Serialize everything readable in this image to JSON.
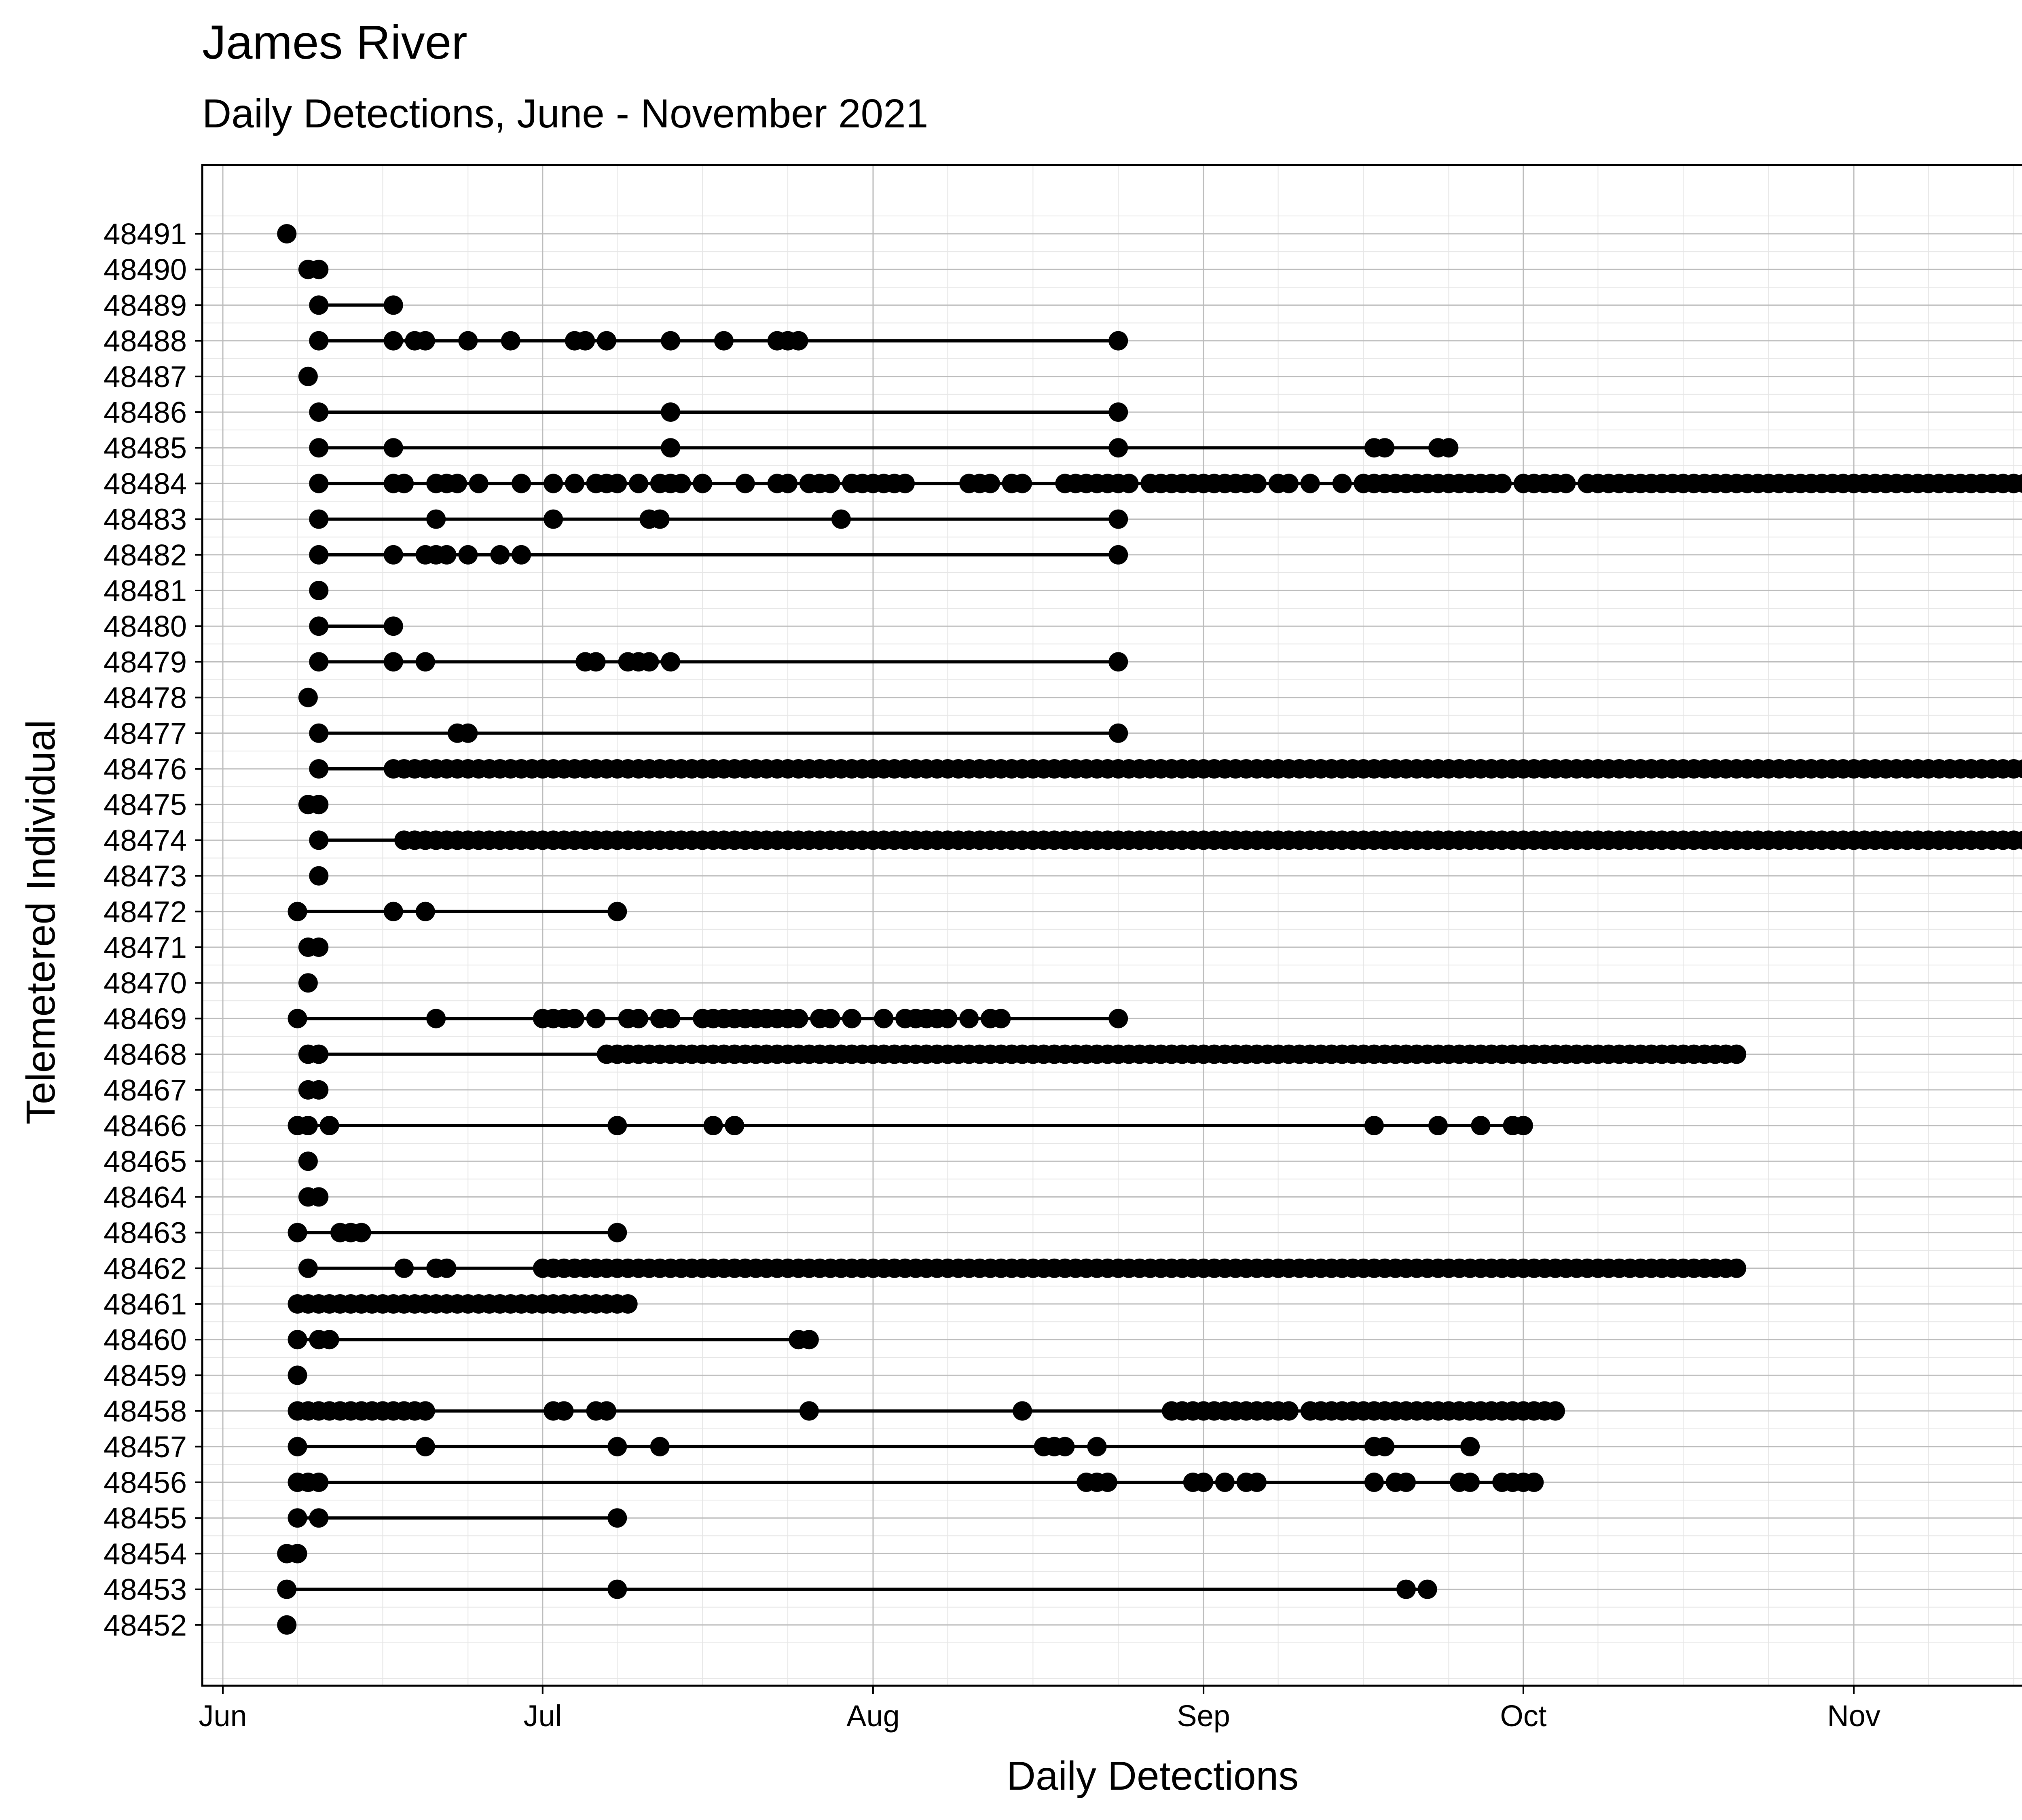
{
  "chart_data": {
    "type": "scatter",
    "title": "James River",
    "subtitle": "Daily Detections, June - November 2021",
    "xlabel": "Daily Detections",
    "ylabel": "Telemetered Individual",
    "x_scale": "date",
    "xlim": [
      "2021-05-30",
      "2021-11-30"
    ],
    "x_ticks": [
      {
        "date": "2021-06-01",
        "label": "Jun"
      },
      {
        "date": "2021-07-01",
        "label": "Jul"
      },
      {
        "date": "2021-08-01",
        "label": "Aug"
      },
      {
        "date": "2021-09-01",
        "label": "Sep"
      },
      {
        "date": "2021-10-01",
        "label": "Oct"
      },
      {
        "date": "2021-11-01",
        "label": "Nov"
      }
    ],
    "grid": true,
    "legend": "none",
    "series": [
      {
        "id": "48491",
        "dates": [
          "2021-06-07"
        ]
      },
      {
        "id": "48490",
        "dates": [
          "2021-06-09",
          "2021-06-10"
        ]
      },
      {
        "id": "48489",
        "dates": [
          "2021-06-10",
          "2021-06-17"
        ]
      },
      {
        "id": "48488",
        "dates": [
          "2021-06-10",
          "2021-06-17",
          "2021-06-19",
          "2021-06-20",
          "2021-06-24",
          "2021-06-28",
          "2021-07-04",
          "2021-07-05",
          "2021-07-07",
          "2021-07-13",
          "2021-07-18",
          "2021-07-23",
          "2021-07-24",
          "2021-07-25",
          "2021-08-24"
        ]
      },
      {
        "id": "48487",
        "dates": [
          "2021-06-09"
        ]
      },
      {
        "id": "48486",
        "dates": [
          "2021-06-10",
          "2021-07-13",
          "2021-08-24"
        ]
      },
      {
        "id": "48485",
        "dates": [
          "2021-06-10",
          "2021-06-17",
          "2021-07-13",
          "2021-08-24",
          "2021-09-17",
          "2021-09-18",
          "2021-09-23",
          "2021-09-24"
        ]
      },
      {
        "id": "48484",
        "dates": [
          "2021-06-10",
          "2021-06-17",
          "2021-06-18",
          "2021-06-21",
          "2021-06-22",
          "2021-06-23",
          "2021-06-25",
          "2021-06-29",
          "2021-07-02",
          "2021-07-04",
          "2021-07-06",
          "2021-07-07",
          "2021-07-08",
          "2021-07-10",
          "2021-07-12",
          "2021-07-13",
          "2021-07-14",
          "2021-07-16",
          "2021-07-20",
          "2021-07-23",
          "2021-07-24",
          "2021-07-26",
          "2021-07-27",
          "2021-07-28",
          "2021-07-30",
          "2021-07-31",
          "2021-08-01",
          "2021-08-02",
          "2021-08-03",
          "2021-08-04",
          "2021-08-10",
          "2021-08-11",
          "2021-08-12",
          "2021-08-14",
          "2021-08-15",
          "2021-08-19",
          "2021-08-20",
          "2021-08-21",
          "2021-08-22",
          "2021-08-23",
          "2021-08-24",
          "2021-08-25",
          "2021-08-27",
          "2021-08-28",
          "2021-08-29",
          "2021-08-30",
          "2021-08-31",
          "2021-09-01",
          "2021-09-02",
          "2021-09-03",
          "2021-09-04",
          "2021-09-05",
          "2021-09-06",
          "2021-09-08",
          "2021-09-09",
          "2021-09-11",
          "2021-09-14",
          "2021-09-16",
          "2021-09-17",
          "2021-09-18",
          "2021-09-19",
          "2021-09-20",
          "2021-09-21",
          "2021-09-22",
          "2021-09-23",
          "2021-09-24",
          "2021-09-25",
          "2021-09-26",
          "2021-09-27",
          "2021-09-28",
          "2021-09-29",
          "2021-10-01",
          "2021-10-02",
          "2021-10-03",
          "2021-10-04",
          "2021-10-05",
          "2021-10-07",
          "2021-10-08",
          "2021-10-09",
          "2021-10-10",
          "2021-10-11",
          "2021-10-12",
          "2021-10-13",
          "2021-10-14",
          "2021-10-15",
          "2021-10-16",
          "2021-10-17",
          "2021-10-18",
          "2021-10-19",
          "2021-10-20",
          "2021-10-21",
          "2021-10-22",
          "2021-10-23",
          "2021-10-24",
          "2021-10-25",
          "2021-10-26",
          "2021-10-27",
          "2021-10-28",
          "2021-10-29",
          "2021-10-30",
          "2021-10-31",
          "2021-11-01",
          "2021-11-02",
          "2021-11-03",
          "2021-11-04",
          "2021-11-05",
          "2021-11-06",
          "2021-11-07",
          "2021-11-08",
          "2021-11-09",
          "2021-11-10",
          "2021-11-11",
          "2021-11-12",
          "2021-11-13",
          "2021-11-14",
          "2021-11-15",
          "2021-11-16",
          "2021-11-17",
          "2021-11-18"
        ]
      },
      {
        "id": "48483",
        "dates": [
          "2021-06-10",
          "2021-06-21",
          "2021-07-02",
          "2021-07-11",
          "2021-07-12",
          "2021-07-29",
          "2021-08-24"
        ]
      },
      {
        "id": "48482",
        "dates": [
          "2021-06-10",
          "2021-06-17",
          "2021-06-20",
          "2021-06-21",
          "2021-06-22",
          "2021-06-24",
          "2021-06-27",
          "2021-06-29",
          "2021-08-24"
        ]
      },
      {
        "id": "48481",
        "dates": [
          "2021-06-10"
        ]
      },
      {
        "id": "48480",
        "dates": [
          "2021-06-10",
          "2021-06-17"
        ]
      },
      {
        "id": "48479",
        "dates": [
          "2021-06-10",
          "2021-06-17",
          "2021-06-20",
          "2021-07-05",
          "2021-07-06",
          "2021-07-09",
          "2021-07-10",
          "2021-07-11",
          "2021-07-13",
          "2021-08-24"
        ]
      },
      {
        "id": "48478",
        "dates": [
          "2021-06-09"
        ]
      },
      {
        "id": "48477",
        "dates": [
          "2021-06-10",
          "2021-06-23",
          "2021-06-24",
          "2021-08-24"
        ]
      },
      {
        "id": "48476",
        "range": [
          "2021-06-10",
          "2021-11-19"
        ],
        "first": "2021-06-10",
        "continuous_from": "2021-06-17"
      },
      {
        "id": "48475",
        "dates": [
          "2021-06-09",
          "2021-06-10"
        ]
      },
      {
        "id": "48474",
        "range": [
          "2021-06-10",
          "2021-11-19"
        ],
        "first": "2021-06-10",
        "continuous_from": "2021-06-18"
      },
      {
        "id": "48473",
        "dates": [
          "2021-06-10"
        ]
      },
      {
        "id": "48472",
        "dates": [
          "2021-06-08",
          "2021-06-17",
          "2021-06-20",
          "2021-07-08"
        ]
      },
      {
        "id": "48471",
        "dates": [
          "2021-06-09",
          "2021-06-10"
        ]
      },
      {
        "id": "48470",
        "dates": [
          "2021-06-09"
        ]
      },
      {
        "id": "48469",
        "dates": [
          "2021-06-08",
          "2021-06-21",
          "2021-07-01",
          "2021-07-02",
          "2021-07-03",
          "2021-07-04",
          "2021-07-06",
          "2021-07-09",
          "2021-07-10",
          "2021-07-12",
          "2021-07-13",
          "2021-07-16",
          "2021-07-17",
          "2021-07-18",
          "2021-07-19",
          "2021-07-20",
          "2021-07-21",
          "2021-07-22",
          "2021-07-23",
          "2021-07-24",
          "2021-07-25",
          "2021-07-27",
          "2021-07-28",
          "2021-07-30",
          "2021-08-02",
          "2021-08-04",
          "2021-08-05",
          "2021-08-06",
          "2021-08-07",
          "2021-08-08",
          "2021-08-10",
          "2021-08-12",
          "2021-08-13",
          "2021-08-24"
        ]
      },
      {
        "id": "48468",
        "range": [
          "2021-06-09",
          "2021-10-21"
        ],
        "first": "2021-06-09",
        "second": "2021-06-10",
        "continuous_from": "2021-07-07"
      },
      {
        "id": "48467",
        "dates": [
          "2021-06-09",
          "2021-06-10"
        ]
      },
      {
        "id": "48466",
        "dates": [
          "2021-06-08",
          "2021-06-09",
          "2021-06-11",
          "2021-07-08",
          "2021-07-17",
          "2021-07-19",
          "2021-09-17",
          "2021-09-23",
          "2021-09-27",
          "2021-09-30",
          "2021-10-01"
        ]
      },
      {
        "id": "48465",
        "dates": [
          "2021-06-09"
        ]
      },
      {
        "id": "48464",
        "dates": [
          "2021-06-09",
          "2021-06-10"
        ]
      },
      {
        "id": "48463",
        "dates": [
          "2021-06-08",
          "2021-06-12",
          "2021-06-13",
          "2021-06-14",
          "2021-07-08"
        ]
      },
      {
        "id": "48462",
        "range": [
          "2021-06-09",
          "2021-10-21"
        ],
        "first": "2021-06-09",
        "extra": [
          "2021-06-18",
          "2021-06-21",
          "2021-06-22"
        ],
        "continuous_from": "2021-07-01"
      },
      {
        "id": "48461",
        "range": [
          "2021-06-08",
          "2021-07-09"
        ],
        "continuous_from": "2021-06-08"
      },
      {
        "id": "48460",
        "dates": [
          "2021-06-08",
          "2021-06-10",
          "2021-06-11",
          "2021-07-25",
          "2021-07-26"
        ]
      },
      {
        "id": "48459",
        "dates": [
          "2021-06-08"
        ]
      },
      {
        "id": "48458",
        "dates": [
          "2021-06-08",
          "2021-06-09",
          "2021-06-10",
          "2021-06-11",
          "2021-06-12",
          "2021-06-13",
          "2021-06-14",
          "2021-06-15",
          "2021-06-16",
          "2021-06-17",
          "2021-06-18",
          "2021-06-19",
          "2021-06-20",
          "2021-07-02",
          "2021-07-03",
          "2021-07-06",
          "2021-07-07",
          "2021-07-26",
          "2021-08-15",
          "2021-08-29",
          "2021-08-30",
          "2021-08-31",
          "2021-09-01",
          "2021-09-02",
          "2021-09-03",
          "2021-09-04",
          "2021-09-05",
          "2021-09-06",
          "2021-09-07",
          "2021-09-08",
          "2021-09-09",
          "2021-09-11",
          "2021-09-12",
          "2021-09-13",
          "2021-09-14",
          "2021-09-15",
          "2021-09-16",
          "2021-09-17",
          "2021-09-18",
          "2021-09-19",
          "2021-09-20",
          "2021-09-21",
          "2021-09-22",
          "2021-09-23",
          "2021-09-24",
          "2021-09-25",
          "2021-09-26",
          "2021-09-27",
          "2021-09-28",
          "2021-09-29",
          "2021-09-30",
          "2021-10-01",
          "2021-10-02",
          "2021-10-03",
          "2021-10-04"
        ]
      },
      {
        "id": "48457",
        "dates": [
          "2021-06-08",
          "2021-06-20",
          "2021-07-08",
          "2021-07-12",
          "2021-08-17",
          "2021-08-18",
          "2021-08-19",
          "2021-08-22",
          "2021-09-17",
          "2021-09-18",
          "2021-09-26"
        ]
      },
      {
        "id": "48456",
        "dates": [
          "2021-06-08",
          "2021-06-09",
          "2021-06-10",
          "2021-08-21",
          "2021-08-22",
          "2021-08-23",
          "2021-08-31",
          "2021-09-01",
          "2021-09-03",
          "2021-09-05",
          "2021-09-06",
          "2021-09-17",
          "2021-09-19",
          "2021-09-20",
          "2021-09-25",
          "2021-09-26",
          "2021-09-29",
          "2021-09-30",
          "2021-10-01",
          "2021-10-02"
        ]
      },
      {
        "id": "48455",
        "dates": [
          "2021-06-08",
          "2021-06-10",
          "2021-07-08"
        ]
      },
      {
        "id": "48454",
        "dates": [
          "2021-06-07",
          "2021-06-08"
        ]
      },
      {
        "id": "48453",
        "dates": [
          "2021-06-07",
          "2021-07-08",
          "2021-09-20",
          "2021-09-22"
        ]
      },
      {
        "id": "48452",
        "dates": [
          "2021-06-07"
        ]
      }
    ]
  }
}
